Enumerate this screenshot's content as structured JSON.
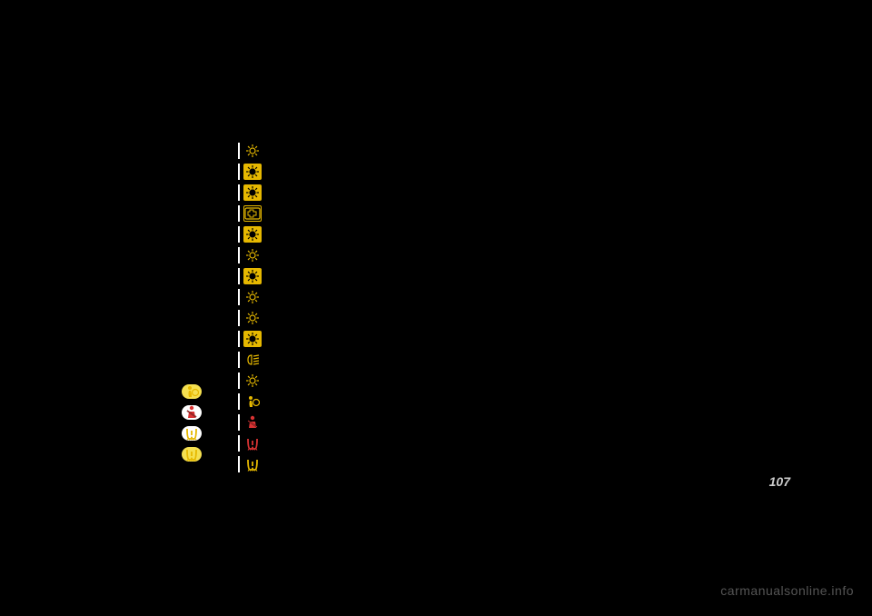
{
  "page_number": "107",
  "watermark": "carmanualsonline.info",
  "colors": {
    "background": "#000000",
    "bar": "#ffffff",
    "amber": "#E6B800",
    "amber_bright": "#F0C400",
    "red": "#D93333",
    "yellow_pill": "#F5E050",
    "white": "#ffffff",
    "page_num": "#cccccc",
    "watermark": "#555555"
  },
  "right_icons": [
    {
      "name": "light-1-icon",
      "type": "sun",
      "style": "outline",
      "color": "#E6B800",
      "bg": "transparent"
    },
    {
      "name": "light-2-icon",
      "type": "sun",
      "style": "solid",
      "color": "#000000",
      "bg": "#E6B800"
    },
    {
      "name": "light-3-icon",
      "type": "sun",
      "style": "solid",
      "color": "#000000",
      "bg": "#E6B800"
    },
    {
      "name": "engine-icon",
      "type": "engine",
      "style": "outline-box",
      "color": "#E6B800",
      "bg": "transparent"
    },
    {
      "name": "light-5-icon",
      "type": "sun",
      "style": "solid",
      "color": "#000000",
      "bg": "#E6B800"
    },
    {
      "name": "light-6-icon",
      "type": "sun",
      "style": "outline",
      "color": "#E6B800",
      "bg": "transparent"
    },
    {
      "name": "light-7-icon",
      "type": "sun",
      "style": "solid",
      "color": "#000000",
      "bg": "#E6B800"
    },
    {
      "name": "light-8-icon",
      "type": "sun",
      "style": "outline",
      "color": "#E6B800",
      "bg": "transparent"
    },
    {
      "name": "light-9-icon",
      "type": "sun",
      "style": "outline",
      "color": "#E6B800",
      "bg": "transparent"
    },
    {
      "name": "light-10-icon",
      "type": "sun",
      "style": "solid",
      "color": "#000000",
      "bg": "#E6B800"
    },
    {
      "name": "fog-light-icon",
      "type": "foglight",
      "style": "outline",
      "color": "#E6B800",
      "bg": "transparent"
    },
    {
      "name": "light-12-icon",
      "type": "sun",
      "style": "outline",
      "color": "#E6B800",
      "bg": "transparent"
    },
    {
      "name": "airbag-icon",
      "type": "airbag",
      "style": "outline",
      "color": "#E6B800",
      "bg": "transparent"
    },
    {
      "name": "seatbelt-icon",
      "type": "seatbelt",
      "style": "outline",
      "color": "#D93333",
      "bg": "transparent"
    },
    {
      "name": "tire-pressure-1-icon",
      "type": "tpms",
      "style": "outline",
      "color": "#D93333",
      "bg": "transparent"
    },
    {
      "name": "tire-pressure-2-icon",
      "type": "tpms",
      "style": "outline",
      "color": "#E6B800",
      "bg": "transparent"
    }
  ],
  "left_icons": [
    {
      "name": "airbag-left-icon",
      "type": "airbag",
      "color": "#E6B800",
      "bg": "#F5E050"
    },
    {
      "name": "seatbelt-left-icon",
      "type": "seatbelt",
      "color": "#D93333",
      "bg": "#ffffff"
    },
    {
      "name": "tpms-left-1-icon",
      "type": "tpms",
      "color": "#E6B800",
      "bg": "#ffffff"
    },
    {
      "name": "tpms-left-2-icon",
      "type": "tpms",
      "color": "#E6B800",
      "bg": "#F5E050"
    }
  ]
}
